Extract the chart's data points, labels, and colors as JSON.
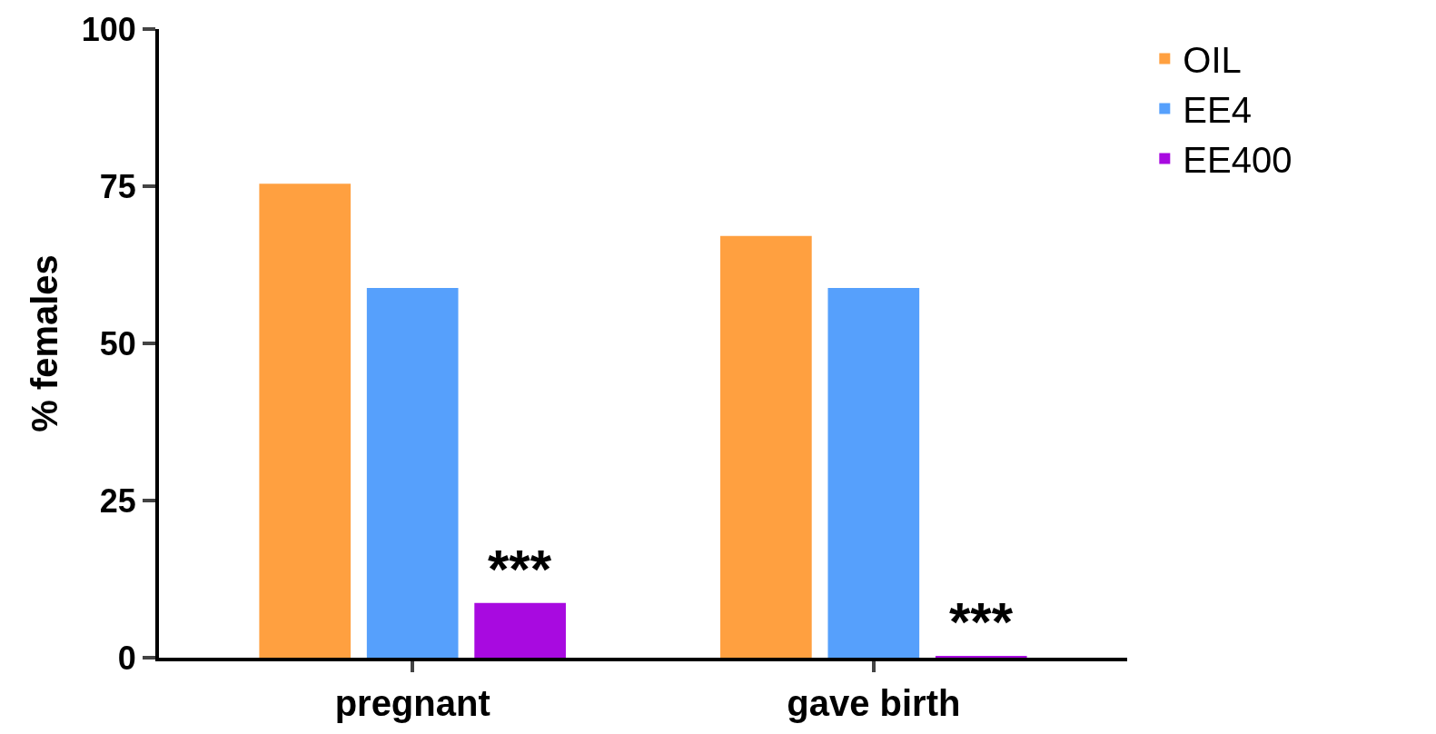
{
  "chart_data": {
    "type": "bar",
    "ylabel": "% females",
    "categories": [
      "pregnant",
      "gave birth"
    ],
    "series": [
      {
        "name": "OIL",
        "color": "#ffa040",
        "values": [
          75.4,
          67.1
        ]
      },
      {
        "name": "EE4",
        "color": "#56a0fc",
        "values": [
          58.8,
          58.8
        ]
      },
      {
        "name": "EE400",
        "color": "#a80ae0",
        "values": [
          8.7,
          0.3
        ]
      }
    ],
    "ylim": [
      0,
      100
    ],
    "yticks": [
      0,
      25,
      50,
      75,
      100
    ],
    "legend": "top right",
    "annotations": [
      "***",
      "***"
    ]
  }
}
